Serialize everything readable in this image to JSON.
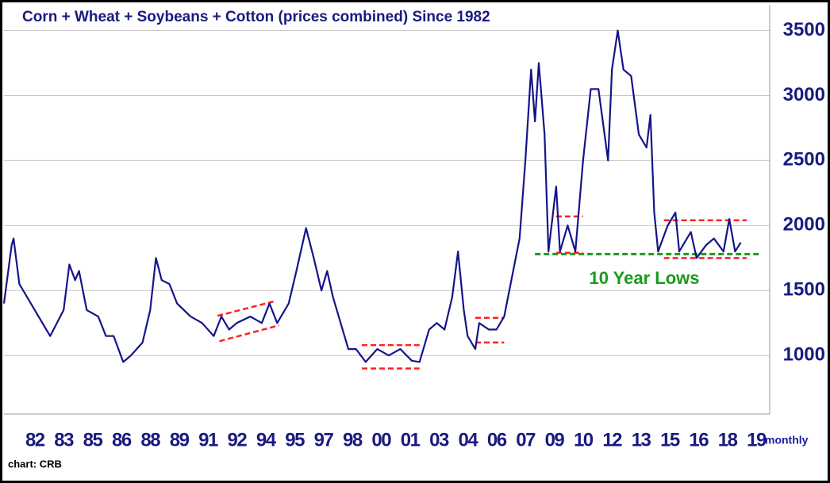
{
  "chart_data": {
    "type": "line",
    "title": "Corn + Wheat + Soybeans + Cotton (prices combined) Since 1982",
    "x_label": "monthly",
    "source": "chart: CRB",
    "annotation": "10 Year Lows",
    "xlim": [
      1980.4,
      2020.2
    ],
    "ylim": [
      550,
      3680
    ],
    "yticks": [
      1000,
      1500,
      2000,
      2500,
      3000,
      3500
    ],
    "xticks": [
      {
        "value": 1982,
        "label": "82"
      },
      {
        "value": 1983.5,
        "label": "83"
      },
      {
        "value": 1985,
        "label": "85"
      },
      {
        "value": 1986.5,
        "label": "86"
      },
      {
        "value": 1988,
        "label": "88"
      },
      {
        "value": 1989.5,
        "label": "89"
      },
      {
        "value": 1991,
        "label": "91"
      },
      {
        "value": 1992.5,
        "label": "92"
      },
      {
        "value": 1994,
        "label": "94"
      },
      {
        "value": 1995.5,
        "label": "95"
      },
      {
        "value": 1997,
        "label": "97"
      },
      {
        "value": 1998.5,
        "label": "98"
      },
      {
        "value": 2000,
        "label": "00"
      },
      {
        "value": 2001.5,
        "label": "01"
      },
      {
        "value": 2003,
        "label": "03"
      },
      {
        "value": 2004.5,
        "label": "04"
      },
      {
        "value": 2006,
        "label": "06"
      },
      {
        "value": 2007.5,
        "label": "07"
      },
      {
        "value": 2009,
        "label": "09"
      },
      {
        "value": 2010.5,
        "label": "10"
      },
      {
        "value": 2012,
        "label": "12"
      },
      {
        "value": 2013.5,
        "label": "13"
      },
      {
        "value": 2015,
        "label": "15"
      },
      {
        "value": 2016.5,
        "label": "16"
      },
      {
        "value": 2018,
        "label": "18"
      },
      {
        "value": 2019.5,
        "label": "19"
      }
    ],
    "grid": true,
    "series": [
      {
        "color": "#14148a",
        "x": [
          1980.4,
          1980.8,
          1980.9,
          1981.2,
          1981.6,
          1982.2,
          1982.8,
          1983.5,
          1983.8,
          1984.1,
          1984.3,
          1984.7,
          1985.3,
          1985.7,
          1986.1,
          1986.6,
          1987.0,
          1987.6,
          1988.0,
          1988.3,
          1988.6,
          1989.0,
          1989.4,
          1990.1,
          1990.7,
          1991.3,
          1991.7,
          1992.1,
          1992.5,
          1993.2,
          1993.8,
          1994.2,
          1994.6,
          1995.2,
          1995.6,
          1996.1,
          1996.5,
          1996.9,
          1997.2,
          1997.5,
          1997.9,
          1998.3,
          1998.7,
          1999.2,
          1999.8,
          2000.4,
          2001.0,
          2001.6,
          2002.0,
          2002.5,
          2002.9,
          2003.3,
          2003.7,
          2004.0,
          2004.3,
          2004.5,
          2004.9,
          2005.1,
          2005.6,
          2006.0,
          2006.4,
          2006.8,
          2007.2,
          2007.5,
          2007.8,
          2008.0,
          2008.2,
          2008.5,
          2008.7,
          2009.1,
          2009.3,
          2009.7,
          2010.1,
          2010.5,
          2010.9,
          2011.3,
          2011.8,
          2012.0,
          2012.3,
          2012.6,
          2013.0,
          2013.4,
          2013.8,
          2014.0,
          2014.2,
          2014.4,
          2014.9,
          2015.3,
          2015.5,
          2016.1,
          2016.4,
          2016.9,
          2017.3,
          2017.8,
          2018.1,
          2018.4,
          2018.7
        ],
        "values": [
          1400,
          1850,
          1900,
          1550,
          1450,
          1300,
          1150,
          1350,
          1700,
          1580,
          1650,
          1350,
          1300,
          1150,
          1150,
          950,
          1000,
          1100,
          1350,
          1750,
          1580,
          1550,
          1400,
          1300,
          1250,
          1150,
          1300,
          1200,
          1250,
          1300,
          1250,
          1400,
          1250,
          1400,
          1650,
          1980,
          1750,
          1500,
          1650,
          1450,
          1250,
          1050,
          1050,
          950,
          1050,
          1000,
          1050,
          960,
          950,
          1200,
          1250,
          1200,
          1450,
          1800,
          1350,
          1150,
          1050,
          1250,
          1200,
          1200,
          1300,
          1600,
          1900,
          2500,
          3200,
          2800,
          3250,
          2700,
          1800,
          2300,
          1800,
          2000,
          1800,
          2500,
          3050,
          3050,
          2500,
          3200,
          3500,
          3200,
          3150,
          2700,
          2600,
          2850,
          2100,
          1800,
          2000,
          2100,
          1800,
          1950,
          1750,
          1850,
          1900,
          1800,
          2050,
          1800,
          1870
        ]
      }
    ],
    "reference_lines": [
      {
        "color": "#ff2020",
        "x": [
          1991.5,
          1994.4
        ],
        "y": [
          1305,
          1415
        ]
      },
      {
        "color": "#ff2020",
        "x": [
          1991.6,
          1994.7
        ],
        "y": [
          1110,
          1232
        ]
      },
      {
        "color": "#ff2020",
        "x": [
          1999.0,
          2002.0
        ],
        "y": [
          1080,
          1080
        ]
      },
      {
        "color": "#ff2020",
        "x": [
          1999.0,
          2002.0
        ],
        "y": [
          900,
          900
        ]
      },
      {
        "color": "#ff2020",
        "x": [
          2004.9,
          2006.4
        ],
        "y": [
          1290,
          1290
        ]
      },
      {
        "color": "#ff2020",
        "x": [
          2004.9,
          2006.4
        ],
        "y": [
          1100,
          1100
        ]
      },
      {
        "color": "#ff2020",
        "x": [
          2009.1,
          2010.5
        ],
        "y": [
          2070,
          2070
        ]
      },
      {
        "color": "#ff2020",
        "x": [
          2009.1,
          2010.5
        ],
        "y": [
          1790,
          1790
        ]
      },
      {
        "color": "#ff2020",
        "x": [
          2014.7,
          2019.0
        ],
        "y": [
          2040,
          2040
        ]
      },
      {
        "color": "#ff2020",
        "x": [
          2014.7,
          2019.0
        ],
        "y": [
          1750,
          1750
        ]
      },
      {
        "color": "#1a9a1a",
        "x": [
          2008.0,
          2019.8
        ],
        "y": [
          1780,
          1780
        ]
      }
    ]
  }
}
